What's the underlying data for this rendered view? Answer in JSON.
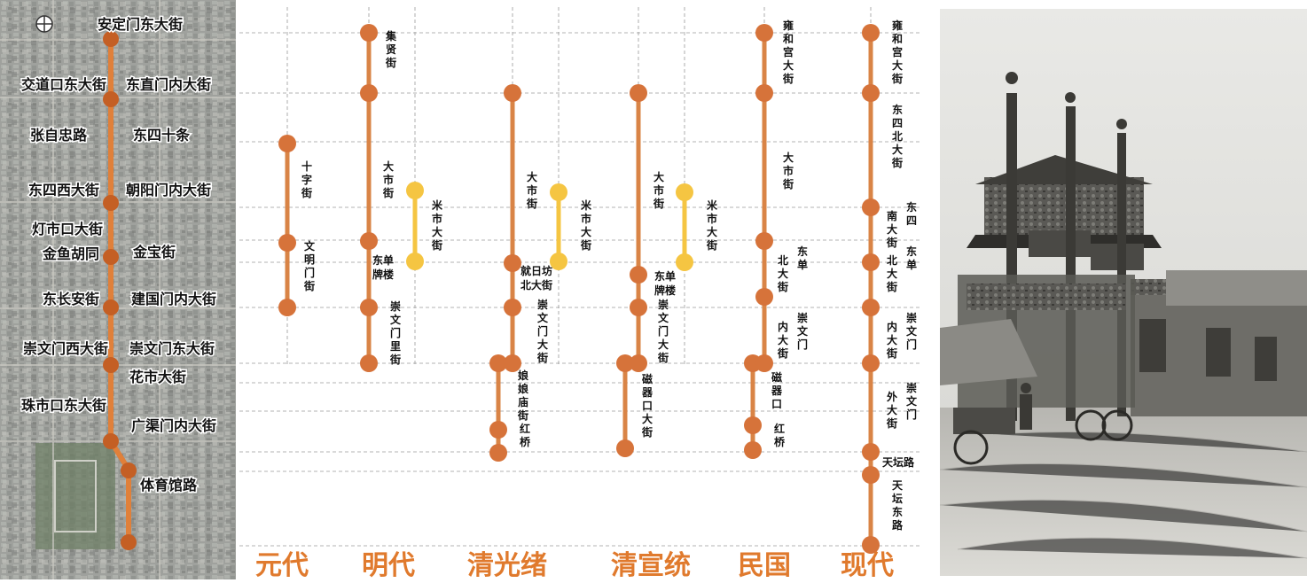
{
  "colors": {
    "main_line": "#d98446",
    "main_node": "#d6733a",
    "branch_line": "#f5c542",
    "era_text": "#e07a2d",
    "map_route": "#e0803a"
  },
  "map": {
    "icon": "compass-icon",
    "labels": [
      "安定门东大街",
      "交道口东大街",
      "东直门内大街",
      "张自忠路",
      "东四十条",
      "东四西大街",
      "朝阳门内大街",
      "灯市口大街",
      "金鱼胡同",
      "金宝街",
      "东长安街",
      "建国门内大街",
      "崇文门西大街",
      "崇文门东大街",
      "花市大街",
      "珠市口东大街",
      "广渠门内大街",
      "体育馆路"
    ]
  },
  "eras": [
    {
      "name": "元代",
      "segments": [
        "十字街",
        "文明门街"
      ],
      "branch": null
    },
    {
      "name": "明代",
      "segments": [
        "集贤街",
        "大市街",
        "东单牌楼",
        "崇文门里街"
      ],
      "branch": "米市大街"
    },
    {
      "name": "清光绪",
      "segments": [
        "大市街",
        "就日坊北大街",
        "崇文门大街",
        "娘娘庙街",
        "红桥"
      ],
      "branch": "米市大街"
    },
    {
      "name": "清宣统",
      "segments": [
        "大市街",
        "东单牌楼",
        "崇文门大街",
        "磁器口大街"
      ],
      "branch": "米市大街"
    },
    {
      "name": "民国",
      "segments": [
        "雍和宫大街",
        "大市街",
        "东单北大街",
        "崇文门内大街",
        "磁器口",
        "红桥"
      ],
      "branch": null
    },
    {
      "name": "现代",
      "segments": [
        "雍和宫大街",
        "东四北大街",
        "东四南大街",
        "东单北大街",
        "崇文门内大街",
        "崇文门外大街",
        "天坛路",
        "天坛东路"
      ],
      "branch": null
    }
  ],
  "photo": {
    "subject": "archway-photo"
  }
}
